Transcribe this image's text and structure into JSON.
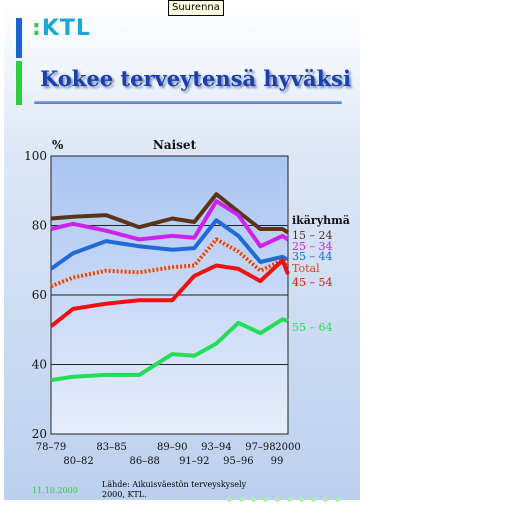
{
  "enlarge_button": "Suurenna",
  "logo": {
    "text": "KTL"
  },
  "slide_title": "Kokee terveytensä hyväksi",
  "chart_data": {
    "type": "line",
    "title": "Naiset",
    "ylabel": "%",
    "ylim": [
      20,
      100
    ],
    "yticks": [
      20,
      40,
      60,
      80,
      100
    ],
    "x": [
      1978.5,
      1979.5,
      1980.5,
      1981.5,
      1982.5,
      1983.5,
      1984.5,
      1985.5,
      1986.5,
      1987.5,
      1988.5,
      1989.5,
      1990.5,
      1991.5,
      1992.5,
      1993.5,
      1994.5,
      1995.5,
      1996.5,
      1997.5,
      1998.5,
      1999.5,
      2000
    ],
    "xticks_top": [
      "78–79",
      "83–85",
      "89–90",
      "93–94",
      "97–98",
      "2000"
    ],
    "xticks_bottom": [
      "80–82",
      "86–88",
      "91–92",
      "95–96",
      "99"
    ],
    "legend_title": "ikäryhmä",
    "series": [
      {
        "name": "15 – 24",
        "color": "#5a3418",
        "points": [
          [
            1978.5,
            82
          ],
          [
            1980.5,
            82.5
          ],
          [
            1983.5,
            83
          ],
          [
            1986.5,
            79.5
          ],
          [
            1989.5,
            82
          ],
          [
            1991.5,
            81
          ],
          [
            1993.5,
            89
          ],
          [
            1997.5,
            79
          ],
          [
            1999.5,
            79
          ],
          [
            2000,
            78
          ]
        ]
      },
      {
        "name": "25 – 34",
        "color": "#cc22ee",
        "points": [
          [
            1978.5,
            79
          ],
          [
            1980.5,
            80.5
          ],
          [
            1983.5,
            78.5
          ],
          [
            1986.5,
            76
          ],
          [
            1989.5,
            77
          ],
          [
            1991.5,
            76.5
          ],
          [
            1993.5,
            87
          ],
          [
            1995.5,
            83
          ],
          [
            1997.5,
            74
          ],
          [
            1999.5,
            77
          ],
          [
            2000,
            76
          ]
        ]
      },
      {
        "name": "35 – 44",
        "color": "#1f6ad8",
        "points": [
          [
            1978.5,
            67.5
          ],
          [
            1980.5,
            72
          ],
          [
            1983.5,
            75.5
          ],
          [
            1986.5,
            74
          ],
          [
            1989.5,
            73
          ],
          [
            1991.5,
            73.5
          ],
          [
            1993.5,
            81.5
          ],
          [
            1995.5,
            77
          ],
          [
            1997.5,
            69.5
          ],
          [
            1999.5,
            71
          ],
          [
            2000,
            70
          ]
        ]
      },
      {
        "name": "Total",
        "color": "#d04820",
        "dashed": true,
        "points": [
          [
            1978.5,
            62.5
          ],
          [
            1980.5,
            65
          ],
          [
            1983.5,
            67
          ],
          [
            1986.5,
            66.5
          ],
          [
            1989.5,
            68
          ],
          [
            1991.5,
            68.5
          ],
          [
            1993.5,
            76
          ],
          [
            1995.5,
            72.5
          ],
          [
            1997.5,
            67
          ],
          [
            1999.5,
            70
          ],
          [
            2000,
            69
          ]
        ]
      },
      {
        "name": "45 – 54",
        "color": "#ee1111",
        "points": [
          [
            1978.5,
            51
          ],
          [
            1980.5,
            56
          ],
          [
            1983.5,
            57.5
          ],
          [
            1986.5,
            58.5
          ],
          [
            1989.5,
            58.5
          ],
          [
            1991.5,
            65.5
          ],
          [
            1993.5,
            68.5
          ],
          [
            1995.5,
            67.5
          ],
          [
            1997.5,
            64
          ],
          [
            1999.5,
            70
          ],
          [
            2000,
            66
          ]
        ]
      },
      {
        "name": "55 – 64",
        "color": "#22dd55",
        "points": [
          [
            1978.5,
            35.5
          ],
          [
            1980.5,
            36.5
          ],
          [
            1983.5,
            37
          ],
          [
            1986.5,
            37
          ],
          [
            1989.5,
            43
          ],
          [
            1991.5,
            42.5
          ],
          [
            1993.5,
            46
          ],
          [
            1995.5,
            52
          ],
          [
            1997.5,
            49
          ],
          [
            1999.5,
            53
          ],
          [
            2000,
            52.5
          ]
        ]
      }
    ],
    "legend_placement": "right"
  },
  "source_line1": "Lähde: Aikuisväestön terveyskysely",
  "source_line2": "2000, KTL.",
  "date": "11.10.2000"
}
